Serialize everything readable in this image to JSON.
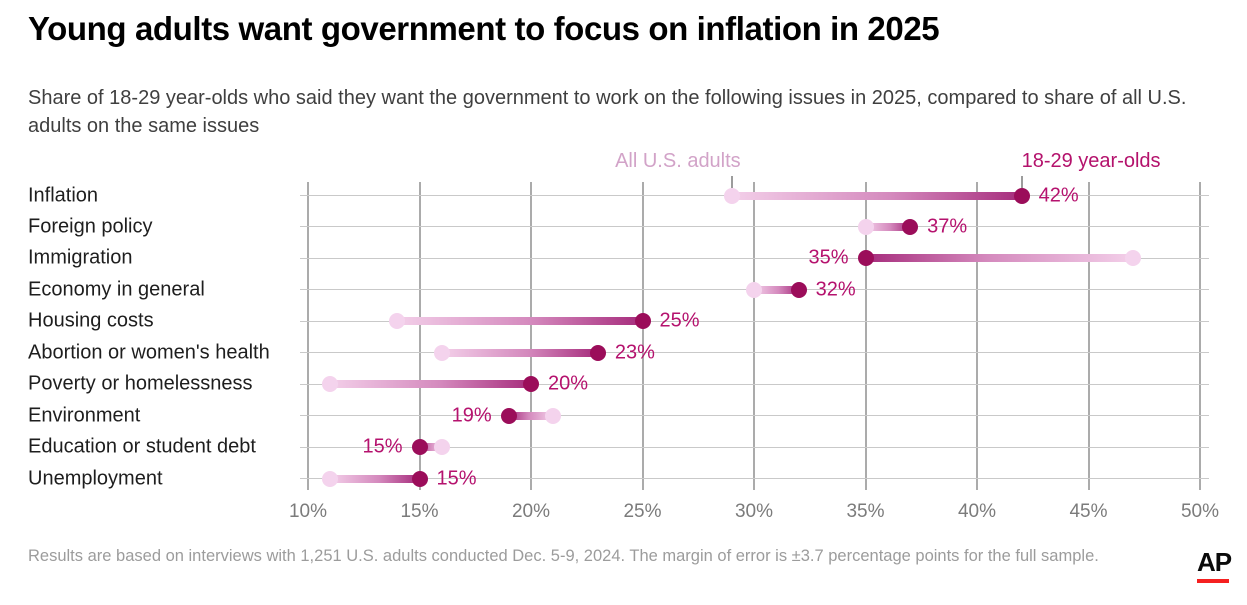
{
  "header": {
    "title": "Young adults want government to focus on inflation in 2025",
    "subtitle": "Share of 18-29 year-olds who said they want the government to work on the following issues in 2025, compared to share of all U.S. adults on the same issues"
  },
  "legend": {
    "adults_label": "All U.S. adults",
    "youth_label": "18-29 year-olds"
  },
  "chart_data": {
    "type": "dumbbell",
    "title": "Young adults want government to focus on inflation in 2025",
    "categories": [
      "Inflation",
      "Foreign policy",
      "Immigration",
      "Economy in general",
      "Housing costs",
      "Abortion or women's health",
      "Poverty or homelessness",
      "Environment",
      "Education or student debt",
      "Unemployment"
    ],
    "series": [
      {
        "name": "All U.S. adults",
        "values": [
          29,
          35,
          47,
          30,
          14,
          16,
          11,
          21,
          16,
          11
        ]
      },
      {
        "name": "18-29 year-olds",
        "values": [
          42,
          37,
          35,
          32,
          25,
          23,
          20,
          19,
          15,
          15
        ]
      }
    ],
    "value_labels": [
      "42%",
      "37%",
      "35%",
      "32%",
      "25%",
      "23%",
      "20%",
      "19%",
      "15%",
      "15%"
    ],
    "x_tick_values": [
      10,
      15,
      20,
      25,
      30,
      35,
      40,
      45,
      50
    ],
    "x_tick_labels": [
      "10%",
      "15%",
      "20%",
      "25%",
      "30%",
      "35%",
      "40%",
      "45%",
      "50%"
    ],
    "xlim": [
      10,
      50
    ],
    "grid": true,
    "legend_position": "top",
    "colors": {
      "youth_dot": "#9b0d5a",
      "adults_dot": "#f4d3ed",
      "bar_dark": "#a62c7c",
      "bar_mid": "#d489bd",
      "bar_light": "#f3cfe9",
      "value_label": "#b5126e",
      "adults_legend": "#d2a3c8",
      "youth_legend": "#b4126c",
      "ap_red": "#f52020"
    }
  },
  "footer": {
    "note": "Results are based on interviews with 1,251 U.S. adults conducted Dec. 5-9, 2024. The margin of error is ±3.7 percentage points for the full sample.",
    "logo": "AP"
  }
}
